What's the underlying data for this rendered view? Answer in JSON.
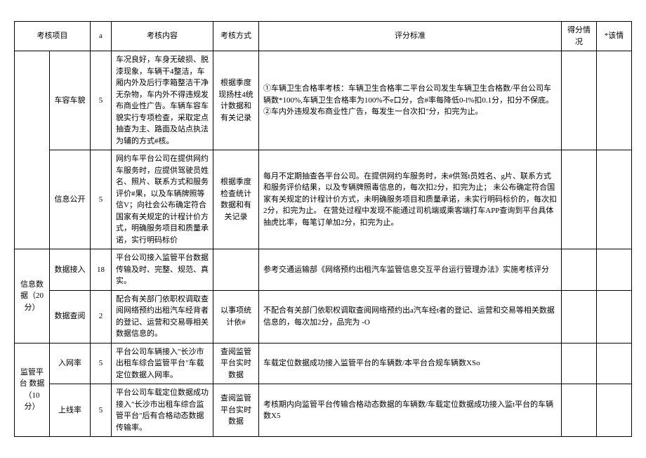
{
  "headers": {
    "category": "考核项目",
    "a": "a",
    "content": "考核内容",
    "method": "考核方式",
    "criteria": "评分标准",
    "score": "得分情况",
    "remark": "*该情"
  },
  "groups": [
    {
      "category": "",
      "rows": [
        {
          "item": "车容车貌",
          "a": "5",
          "content": "车况良好，车身无破损、脱漆现象，车辆干4整洁，车厢内外及后行李箱整洁干净无杂物，车内外不得违规发布商业性广告。车辆车容车貌实行专项检查，采取定点抽查为主、路面及站点执法为辅的方式#核。",
          "method": "根据季度现扬柱4统计数据和有关记录",
          "criteria": "①车辆卫生合格率考核：车辆卫生合格率二平台公司发生车辆卫生合格数/平台公司车辆数*100%,车辆卫生合格率为100%不e口分，合#率每降低0-l%扣0.1分，扣分不保底。②车内外违规发布商业性广告，每发生一台次扣\"分，扣完为止。",
          "score": "",
          "remark": ""
        },
        {
          "item": "信息公开",
          "a": "5",
          "content": "网约车平台公司在提供网约车服务时，应提供驾驶员姓名、照片、联系方式和服务评价#果，以及车辆牌照等信V；向社会公布确定符合国家有关规定的计程计价方式，明确服务项目和质量承诺，实行明码标价",
          "method": "根据季度检查统计数据和有关记录",
          "criteria": "每月不定期抽查各平台公司。在提供网约车服务时，未#供驾t员姓名、g片、联系方式和服务评价结果，以及专辆牌照毒信息的，每次扣2分，扣完为止；\n未公布确定符合国家有关规定的计程计价方式，未明确服务项目和质量承诺，未实行明码标价的，每次扣2分，扣完为止。\n在营处过程中发现不能通过司机端或乘客端打车APP查询到平台具体抽虎比率，每笔订单加2分，扣完为止。",
          "score": "",
          "remark": ""
        }
      ]
    },
    {
      "category": "信息数据（20分）",
      "rows": [
        {
          "item": "数据接入",
          "a": "18",
          "content": "平台公司接入监管平台数据传输及时、完整、规范、真实。",
          "method": "",
          "criteria": "参考交通运输部《网络预约出租汽车监管信息交互平台运行管理办法》实施考核评分",
          "score": "",
          "remark": ""
        },
        {
          "item": "数据查阅",
          "a": "2",
          "content": "配合有关部门依职权调取查阅网络预约出租汽车经背者的登记、运营和交易辱相关数据信息的。",
          "method": "以事项统计依#",
          "criteria": "不配合有关部门依职权调取查阅网络预约出a汽车经t者的登记、运营和交易等相关数据信息的，每次加2分，品完为\n-O",
          "score": "",
          "remark": ""
        }
      ]
    },
    {
      "category": "监管平台 数据（10 分）",
      "rows": [
        {
          "item": "入网率",
          "a": "5",
          "content": "平台公司车辆接入\"长沙市出租车综合监管平台\"车载定位数据入网率。",
          "method": "查阅监管平台实时数据",
          "criteria": "车载定位数据成功接入监管平台的车辆数/本平台合规车辆数XSo",
          "score": "",
          "remark": ""
        },
        {
          "item": "上线率",
          "a": "5",
          "content": "平台公司车载定位数据成功接入\"长沙市出租车综合监管平台\"后有合格动态数据传输率。",
          "method": "查阅监管平台实时数据",
          "criteria": "考核期内向监管平台传输合格动态数据的车辆数/车载定位数据成功接入监t平台的车辆数X5",
          "score": "",
          "remark": ""
        }
      ]
    }
  ]
}
